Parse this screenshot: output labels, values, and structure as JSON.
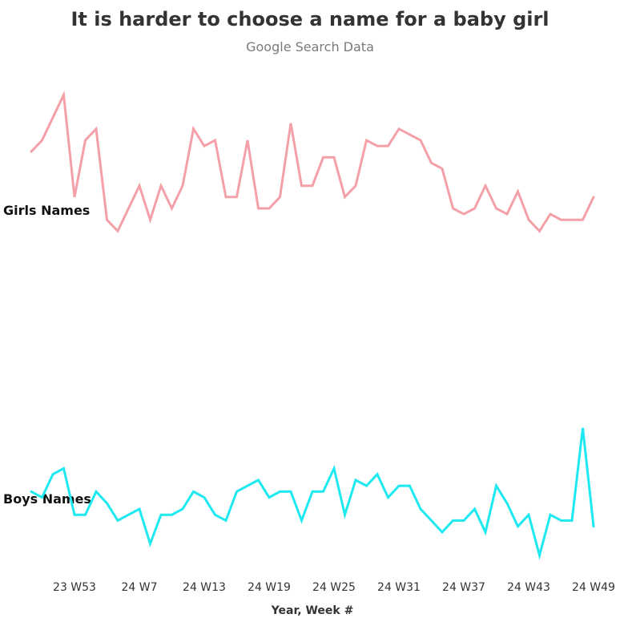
{
  "title": "It is harder to choose a name for a baby girl",
  "subtitle": "Google Search Data",
  "chart_data": {
    "type": "line",
    "title": "It is harder to choose a name for a baby girl",
    "subtitle": "Google Search Data",
    "xlabel": "Year, Week #",
    "ylabel": "",
    "x_tick_labels": [
      "23 W53",
      "24 W7",
      "24 W13",
      "24 W19",
      "24 W25",
      "24 W31",
      "24 W37",
      "24 W43",
      "24 W49"
    ],
    "x_tick_indices": [
      4,
      10,
      16,
      22,
      28,
      34,
      40,
      46,
      52
    ],
    "grid": false,
    "legend": "none",
    "rows": [
      {
        "name": "Girls Names",
        "color": "#f4a0a8",
        "values": [
          64,
          66,
          70,
          74,
          56,
          66,
          68,
          52,
          50,
          54,
          58,
          52,
          58,
          54,
          58,
          68,
          65,
          66,
          56,
          56,
          66,
          54,
          54,
          56,
          69,
          58,
          58,
          63,
          63,
          56,
          58,
          66,
          65,
          65,
          68,
          67,
          66,
          62,
          61,
          54,
          53,
          54,
          58,
          54,
          53,
          57,
          52,
          50,
          53,
          52,
          52,
          52,
          56
        ]
      },
      {
        "name": "Boys Names",
        "color": "#1ee8f0",
        "values": [
          54,
          53,
          57,
          58,
          50,
          50,
          54,
          52,
          49,
          50,
          51,
          45,
          50,
          50,
          51,
          54,
          53,
          50,
          49,
          54,
          55,
          56,
          53,
          54,
          54,
          49,
          54,
          54,
          58,
          50,
          56,
          55,
          57,
          53,
          55,
          55,
          51,
          49,
          47,
          49,
          49,
          51,
          47,
          55,
          52,
          48,
          50,
          43,
          50,
          49,
          49,
          65,
          48
        ]
      }
    ]
  }
}
